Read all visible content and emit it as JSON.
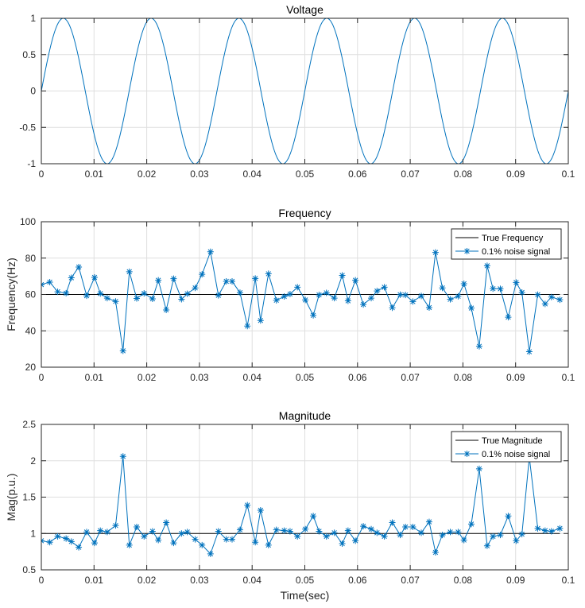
{
  "chart_data": [
    {
      "type": "line",
      "title": "Voltage",
      "xlabel": "",
      "ylabel": "",
      "xlim": [
        0,
        0.1
      ],
      "ylim": [
        -1,
        1
      ],
      "xticks": [
        0,
        0.01,
        0.02,
        0.03,
        0.04,
        0.05,
        0.06,
        0.07,
        0.08,
        0.09,
        0.1
      ],
      "xtick_labels": [
        "0",
        "0.01",
        "0.02",
        "0.03",
        "0.04",
        "0.05",
        "0.06",
        "0.07",
        "0.08",
        "0.09",
        "0.1"
      ],
      "yticks": [
        -1,
        -0.5,
        0,
        0.5,
        1
      ],
      "ytick_labels": [
        "-1",
        "-0.5",
        "0",
        "0.5",
        "1"
      ],
      "grid": true,
      "series": [
        {
          "function": "sin(2*pi*60*t)",
          "frequency_hz": 60,
          "amplitude": 1,
          "color": "#0072BD"
        }
      ]
    },
    {
      "type": "line",
      "title": "Frequency",
      "xlabel": "",
      "ylabel": "Frequency(Hz)",
      "xlim": [
        0,
        0.1
      ],
      "ylim": [
        20,
        100
      ],
      "xticks": [
        0,
        0.01,
        0.02,
        0.03,
        0.04,
        0.05,
        0.06,
        0.07,
        0.08,
        0.09,
        0.1
      ],
      "xtick_labels": [
        "0",
        "0.01",
        "0.02",
        "0.03",
        "0.04",
        "0.05",
        "0.06",
        "0.07",
        "0.08",
        "0.09",
        "0.1"
      ],
      "yticks": [
        20,
        40,
        60,
        80,
        100
      ],
      "ytick_labels": [
        "20",
        "40",
        "60",
        "80",
        "100"
      ],
      "grid": true,
      "legend_position": "top-right",
      "series": [
        {
          "name": "True Frequency",
          "x": [
            0,
            0.0984
          ],
          "y": [
            60,
            60
          ],
          "color": "#000000"
        },
        {
          "name": "0.1% noise signal",
          "marker": "*",
          "color": "#0072BD",
          "x": [
            0,
            0.0016,
            0.0031,
            0.0047,
            0.0057,
            0.0071,
            0.0086,
            0.0101,
            0.0112,
            0.0125,
            0.0141,
            0.0155,
            0.0167,
            0.0181,
            0.0195,
            0.0211,
            0.0222,
            0.0237,
            0.0251,
            0.0266,
            0.0277,
            0.0292,
            0.0305,
            0.0321,
            0.0336,
            0.0351,
            0.0362,
            0.0377,
            0.0391,
            0.0406,
            0.0416,
            0.0431,
            0.0446,
            0.0461,
            0.0472,
            0.0486,
            0.0501,
            0.0516,
            0.0527,
            0.0541,
            0.0556,
            0.0571,
            0.0582,
            0.0596,
            0.0611,
            0.0626,
            0.0637,
            0.0651,
            0.0666,
            0.0681,
            0.0691,
            0.0705,
            0.0721,
            0.0736,
            0.0748,
            0.0761,
            0.0776,
            0.0791,
            0.0802,
            0.0816,
            0.0831,
            0.0846,
            0.0857,
            0.0871,
            0.0886,
            0.0901,
            0.0912,
            0.0926,
            0.0942,
            0.0956,
            0.0968,
            0.0984
          ],
          "y": [
            65.4,
            66.8,
            61.5,
            60.7,
            69.2,
            75.1,
            59.3,
            69.4,
            60.5,
            58,
            56.2,
            29,
            72.5,
            57.8,
            60.6,
            57.6,
            67.8,
            51.5,
            68.7,
            57.4,
            60.4,
            63.6,
            71.1,
            83.5,
            59.5,
            67.2,
            67.2,
            61,
            42.6,
            68.8,
            45.7,
            71.4,
            56.8,
            58.9,
            60.2,
            64,
            57,
            48.5,
            59.8,
            60.9,
            58,
            70.5,
            56.5,
            67.8,
            54.5,
            58,
            61.9,
            64,
            52.7,
            59.9,
            59.7,
            56.1,
            59.2,
            52.8,
            83.1,
            63.6,
            57.3,
            59,
            65.9,
            52.5,
            31.5,
            75.8,
            63.2,
            63.1,
            47.5,
            66.6,
            61.1,
            28.5,
            59.9,
            54.8,
            58.6,
            57.1
          ]
        }
      ]
    },
    {
      "type": "line",
      "title": "Magnitude",
      "xlabel": "Time(sec)",
      "ylabel": "Mag(p.u.)",
      "xlim": [
        0,
        0.1
      ],
      "ylim": [
        0.5,
        2.5
      ],
      "xticks": [
        0,
        0.01,
        0.02,
        0.03,
        0.04,
        0.05,
        0.06,
        0.07,
        0.08,
        0.09,
        0.1
      ],
      "xtick_labels": [
        "0",
        "0.01",
        "0.02",
        "0.03",
        "0.04",
        "0.05",
        "0.06",
        "0.07",
        "0.08",
        "0.09",
        "0.1"
      ],
      "yticks": [
        0.5,
        1,
        1.5,
        2,
        2.5
      ],
      "ytick_labels": [
        "0.5",
        "1",
        "1.5",
        "2",
        "2.5"
      ],
      "grid": true,
      "legend_position": "top-right",
      "series": [
        {
          "name": "True Magnitude",
          "x": [
            0,
            0.0984
          ],
          "y": [
            1,
            1
          ],
          "color": "#000000"
        },
        {
          "name": "0.1% noise signal",
          "marker": "*",
          "color": "#0072BD",
          "x": [
            0,
            0.0016,
            0.0031,
            0.0047,
            0.0057,
            0.0071,
            0.0086,
            0.0101,
            0.0112,
            0.0125,
            0.0141,
            0.0155,
            0.0167,
            0.0181,
            0.0195,
            0.0211,
            0.0222,
            0.0237,
            0.0251,
            0.0266,
            0.0277,
            0.0292,
            0.0305,
            0.0321,
            0.0336,
            0.0351,
            0.0362,
            0.0377,
            0.0391,
            0.0406,
            0.0416,
            0.0431,
            0.0446,
            0.0461,
            0.0472,
            0.0486,
            0.0501,
            0.0516,
            0.0527,
            0.0541,
            0.0556,
            0.0571,
            0.0582,
            0.0596,
            0.0611,
            0.0626,
            0.0637,
            0.0651,
            0.0666,
            0.0681,
            0.0691,
            0.0705,
            0.0721,
            0.0736,
            0.0748,
            0.0761,
            0.0776,
            0.0791,
            0.0802,
            0.0816,
            0.0831,
            0.0846,
            0.0857,
            0.0871,
            0.0886,
            0.0901,
            0.0912,
            0.0926,
            0.0942,
            0.0956,
            0.0968,
            0.0984
          ],
          "y": [
            0.9,
            0.88,
            0.96,
            0.93,
            0.89,
            0.81,
            1.02,
            0.87,
            1.04,
            1.02,
            1.11,
            2.06,
            0.84,
            1.09,
            0.96,
            1.03,
            0.91,
            1.15,
            0.87,
            1,
            1.02,
            0.92,
            0.84,
            0.72,
            1.03,
            0.92,
            0.92,
            1.05,
            1.39,
            0.88,
            1.32,
            0.84,
            1.05,
            1.04,
            1.03,
            0.96,
            1.06,
            1.24,
            1.03,
            0.96,
            1.01,
            0.86,
            1.04,
            0.9,
            1.1,
            1.06,
            1.01,
            0.96,
            1.15,
            0.98,
            1.09,
            1.09,
            1.01,
            1.16,
            0.74,
            0.98,
            1.02,
            1.02,
            0.91,
            1.13,
            1.89,
            0.83,
            0.96,
            0.98,
            1.24,
            0.9,
            0.99,
            2.05,
            1.07,
            1.04,
            1.03,
            1.07
          ]
        }
      ]
    }
  ]
}
